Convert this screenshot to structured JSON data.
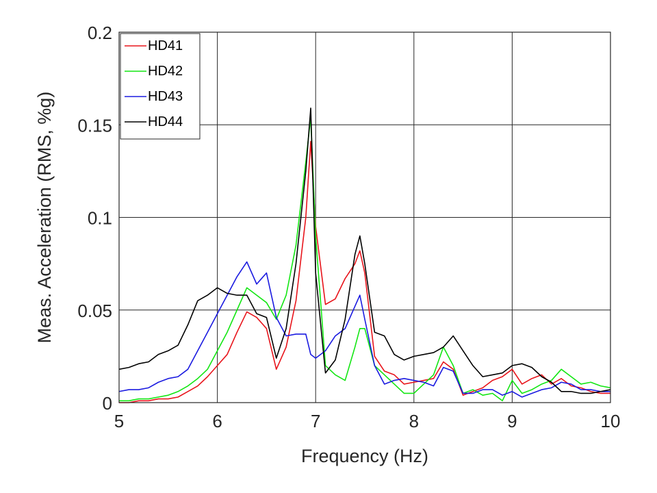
{
  "chart_data": {
    "type": "line",
    "title": "",
    "xlabel": "Frequency (Hz)",
    "ylabel": "Meas. Acceleration (RMS, %g)",
    "xlim": [
      5,
      10
    ],
    "ylim": [
      0,
      0.2
    ],
    "xticks": [
      5,
      6,
      7,
      8,
      9,
      10
    ],
    "xtick_labels": [
      "5",
      "6",
      "7",
      "8",
      "9",
      "10"
    ],
    "yticks": [
      0,
      0.05,
      0.1,
      0.15,
      0.2
    ],
    "ytick_labels": [
      "0",
      "0.05",
      "0.1",
      "0.15",
      "0.2"
    ],
    "grid": true,
    "legend_position": "top-left",
    "x": [
      5.0,
      5.1,
      5.2,
      5.3,
      5.4,
      5.5,
      5.6,
      5.7,
      5.8,
      5.9,
      6.0,
      6.1,
      6.2,
      6.3,
      6.4,
      6.5,
      6.6,
      6.7,
      6.8,
      6.9,
      6.95,
      7.0,
      7.1,
      7.2,
      7.3,
      7.4,
      7.45,
      7.5,
      7.6,
      7.7,
      7.8,
      7.9,
      8.0,
      8.1,
      8.2,
      8.3,
      8.4,
      8.5,
      8.6,
      8.7,
      8.8,
      8.9,
      9.0,
      9.1,
      9.2,
      9.3,
      9.4,
      9.5,
      9.6,
      9.7,
      9.8,
      9.9,
      10.0
    ],
    "series": [
      {
        "name": "HD41",
        "color": "#e8131a",
        "values": [
          0.0,
          0.0,
          0.001,
          0.001,
          0.002,
          0.002,
          0.003,
          0.006,
          0.009,
          0.014,
          0.02,
          0.026,
          0.038,
          0.049,
          0.046,
          0.04,
          0.018,
          0.03,
          0.055,
          0.1,
          0.141,
          0.095,
          0.053,
          0.056,
          0.067,
          0.075,
          0.082,
          0.07,
          0.025,
          0.017,
          0.015,
          0.01,
          0.011,
          0.012,
          0.013,
          0.022,
          0.018,
          0.004,
          0.006,
          0.008,
          0.012,
          0.014,
          0.018,
          0.01,
          0.013,
          0.015,
          0.01,
          0.013,
          0.009,
          0.008,
          0.006,
          0.005,
          0.005
        ]
      },
      {
        "name": "HD42",
        "color": "#12e612",
        "values": [
          0.001,
          0.001,
          0.002,
          0.002,
          0.003,
          0.004,
          0.006,
          0.009,
          0.013,
          0.018,
          0.028,
          0.038,
          0.05,
          0.062,
          0.058,
          0.054,
          0.045,
          0.058,
          0.085,
          0.13,
          0.154,
          0.09,
          0.02,
          0.015,
          0.012,
          0.03,
          0.04,
          0.04,
          0.02,
          0.015,
          0.01,
          0.005,
          0.005,
          0.01,
          0.015,
          0.03,
          0.02,
          0.005,
          0.007,
          0.004,
          0.005,
          0.001,
          0.012,
          0.005,
          0.007,
          0.01,
          0.012,
          0.018,
          0.014,
          0.01,
          0.011,
          0.009,
          0.008
        ]
      },
      {
        "name": "HD43",
        "color": "#1a1ae0",
        "values": [
          0.006,
          0.007,
          0.007,
          0.008,
          0.011,
          0.013,
          0.014,
          0.018,
          0.028,
          0.038,
          0.048,
          0.058,
          0.068,
          0.076,
          0.064,
          0.07,
          0.046,
          0.036,
          0.037,
          0.037,
          0.026,
          0.024,
          0.028,
          0.036,
          0.04,
          0.052,
          0.058,
          0.045,
          0.02,
          0.01,
          0.012,
          0.013,
          0.012,
          0.011,
          0.009,
          0.019,
          0.017,
          0.005,
          0.005,
          0.007,
          0.007,
          0.004,
          0.006,
          0.003,
          0.005,
          0.007,
          0.008,
          0.011,
          0.01,
          0.007,
          0.007,
          0.006,
          0.006
        ]
      },
      {
        "name": "HD44",
        "color": "#000000",
        "values": [
          0.018,
          0.019,
          0.021,
          0.022,
          0.026,
          0.028,
          0.031,
          0.042,
          0.055,
          0.058,
          0.062,
          0.059,
          0.058,
          0.058,
          0.048,
          0.046,
          0.024,
          0.04,
          0.075,
          0.125,
          0.159,
          0.07,
          0.016,
          0.023,
          0.045,
          0.08,
          0.09,
          0.075,
          0.038,
          0.036,
          0.026,
          0.023,
          0.025,
          0.026,
          0.027,
          0.03,
          0.036,
          0.028,
          0.02,
          0.014,
          0.015,
          0.016,
          0.02,
          0.021,
          0.019,
          0.014,
          0.011,
          0.006,
          0.006,
          0.005,
          0.005,
          0.006,
          0.007
        ]
      }
    ]
  }
}
